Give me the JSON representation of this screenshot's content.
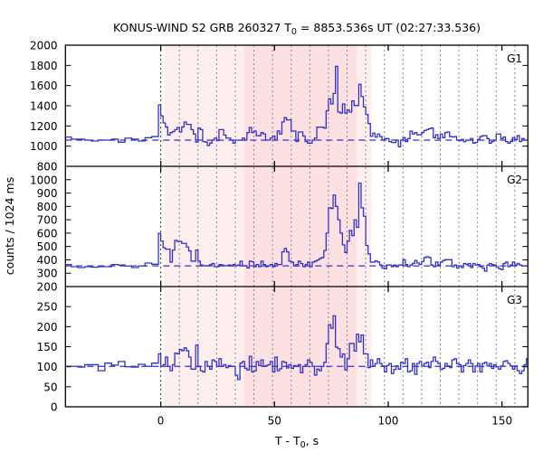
{
  "display": {
    "title": {
      "prefix": "KONUS-WIND S2 GRB 260327 T",
      "sub": "0",
      "suffix": " = 8853.536s UT (02:27:33.536)"
    },
    "xlabel": {
      "prefix": "T - T",
      "sub": "0",
      "suffix": ", s"
    },
    "ylabel": "counts / 1024 ms"
  },
  "chart_data": {
    "type": "line",
    "style": "step",
    "title": "KONUS-WIND S2 GRB 260327 T0 = 8853.536s UT (02:27:33.536)",
    "xlabel": "T - T0, s",
    "ylabel": "counts / 1024 ms",
    "xlim": [
      -41.9,
      161.4
    ],
    "xticks": [
      0,
      50,
      100,
      150
    ],
    "grid": false,
    "legend": null,
    "line_color": "#3232c8",
    "highlight_intervals": [
      {
        "start": 1.6,
        "end": 92.7,
        "color": "#feeeee"
      },
      {
        "start": 36.7,
        "end": 86.2,
        "color": "#fde0e2"
      }
    ],
    "vertical_dotted_lines": {
      "start": 0,
      "step": 8.192,
      "count": 20
    },
    "panels": [
      {
        "name": "G1",
        "label": "G1",
        "ylim": [
          800,
          2000
        ],
        "yticks": [
          800,
          1000,
          1200,
          1400,
          1600,
          1800,
          2000
        ],
        "background_level": 1060,
        "pre_trigger": {
          "t_start": -42.24,
          "bin_width": 2.944,
          "values": [
            1090,
            1069,
            1069,
            1060,
            1051,
            1060,
            1060,
            1069,
            1039,
            1080,
            1069,
            1051,
            1084,
            1095
          ]
        },
        "post_trigger": {
          "t_start": -1.024,
          "bin_width": 1.024,
          "values": [
            1409,
            1300,
            1230,
            1190,
            1110,
            1134,
            1145,
            1164,
            1185,
            1140,
            1190,
            1239,
            1215,
            1215,
            1164,
            1120,
            1040,
            1179,
            1164,
            1045,
            1040,
            1006,
            1030,
            1060,
            1080,
            1055,
            1164,
            1164,
            1110,
            1080,
            1080,
            1060,
            1030,
            1060,
            1060,
            1060,
            1080,
            1060,
            1134,
            1185,
            1134,
            1150,
            1104,
            1104,
            1134,
            1120,
            1060,
            1060,
            1080,
            1100,
            1060,
            1150,
            1120,
            1240,
            1282,
            1260,
            1260,
            1149,
            1150,
            1046,
            1140,
            1140,
            1100,
            1045,
            1030,
            1030,
            1060,
            1080,
            1188,
            1188,
            1188,
            1179,
            1350,
            1469,
            1418,
            1522,
            1791,
            1337,
            1328,
            1418,
            1328,
            1358,
            1337,
            1448,
            1403,
            1403,
            1612,
            1492,
            1388,
            1313,
            1224,
            1098,
            1129,
            1089,
            1120,
            1095,
            1060,
            1075,
            1075,
            1045,
            1036,
            1036,
            1060,
            994,
            1060,
            1084,
            1045,
            1075,
            1149,
            1120,
            1134,
            1113,
            1113,
            1134,
            1155,
            1164,
            1173,
            1179,
            1084,
            1113,
            1075,
            1120,
            1084,
            1134,
            1140,
            1095,
            1090,
            1095,
            1060,
            1054,
            1066,
            1045,
            1060,
            1060,
            1075,
            1030,
            1036,
            1066,
            1095,
            1104,
            1104,
            1075,
            1030,
            1045,
            1060,
            1120,
            1120,
            1075,
            1090,
            1045,
            1030,
            1045,
            1084,
            1066,
            1104,
            1045,
            1075,
            1060,
            1060
          ]
        }
      },
      {
        "name": "G2",
        "label": "G2",
        "ylim": [
          200,
          1100
        ],
        "yticks": [
          200,
          300,
          400,
          500,
          600,
          700,
          800,
          900,
          1000
        ],
        "background_level": 355,
        "pre_trigger": {
          "t_start": -42.24,
          "bin_width": 2.944,
          "values": [
            365,
            349,
            342,
            349,
            345,
            349,
            349,
            365,
            361,
            354,
            342,
            354,
            376,
            367
          ]
        },
        "post_trigger": {
          "t_start": -1.024,
          "bin_width": 1.024,
          "values": [
            598,
            540,
            490,
            480,
            480,
            383,
            473,
            546,
            537,
            537,
            523,
            523,
            496,
            467,
            390,
            390,
            473,
            390,
            361,
            356,
            356,
            356,
            365,
            372,
            349,
            349,
            365,
            361,
            356,
            356,
            361,
            356,
            365,
            356,
            361,
            390,
            356,
            356,
            340,
            390,
            385,
            349,
            365,
            349,
            390,
            365,
            349,
            356,
            365,
            349,
            372,
            365,
            365,
            460,
            485,
            460,
            390,
            383,
            356,
            365,
            390,
            372,
            349,
            365,
            383,
            349,
            383,
            390,
            399,
            410,
            417,
            470,
            600,
            790,
            785,
            885,
            800,
            700,
            600,
            512,
            455,
            540,
            620,
            582,
            700,
            643,
            975,
            790,
            727,
            507,
            444,
            383,
            383,
            393,
            383,
            361,
            338,
            334,
            361,
            361,
            349,
            361,
            349,
            361,
            361,
            401,
            365,
            349,
            361,
            372,
            395,
            376,
            365,
            388,
            417,
            424,
            417,
            361,
            349,
            383,
            361,
            383,
            395,
            401,
            401,
            401,
            349,
            361,
            338,
            354,
            342,
            372,
            365,
            372,
            342,
            372,
            361,
            365,
            349,
            338,
            315,
            361,
            372,
            365,
            361,
            349,
            334,
            327,
            372,
            383,
            349,
            361,
            383,
            361,
            372,
            361,
            354,
            354,
            354
          ]
        }
      },
      {
        "name": "G3",
        "label": "G3",
        "ylim": [
          0,
          300
        ],
        "yticks": [
          0,
          50,
          100,
          150,
          200,
          250
        ],
        "background_level": 101,
        "pre_trigger": {
          "t_start": -42.24,
          "bin_width": 2.944,
          "values": [
            101,
            101,
            99,
            105,
            105,
            90,
            109,
            104,
            113,
            100,
            99,
            106,
            101,
            109
          ]
        },
        "post_trigger": {
          "t_start": -1.024,
          "bin_width": 1.024,
          "values": [
            132,
            101,
            105,
            124,
            101,
            90,
            105,
            134,
            132,
            143,
            140,
            147,
            140,
            124,
            94,
            94,
            154,
            101,
            90,
            87,
            113,
            101,
            94,
            117,
            113,
            101,
            120,
            101,
            105,
            98,
            103,
            101,
            101,
            79,
            68,
            109,
            113,
            96,
            92,
            126,
            87,
            90,
            113,
            103,
            117,
            101,
            103,
            105,
            113,
            87,
            124,
            90,
            95,
            113,
            111,
            97,
            105,
            96,
            103,
            101,
            105,
            85,
            101,
            105,
            117,
            111,
            101,
            79,
            94,
            90,
            101,
            111,
            158,
            205,
            196,
            227,
            149,
            145,
            124,
            132,
            92,
            120,
            158,
            158,
            139,
            181,
            162,
            179,
            132,
            132,
            98,
            117,
            101,
            108,
            120,
            108,
            102,
            87,
            103,
            108,
            83,
            93,
            102,
            94,
            111,
            108,
            120,
            87,
            90,
            108,
            81,
            108,
            113,
            102,
            108,
            111,
            98,
            113,
            124,
            113,
            108,
            93,
            96,
            108,
            102,
            98,
            117,
            120,
            108,
            105,
            87,
            103,
            108,
            117,
            108,
            87,
            102,
            108,
            87,
            108,
            111,
            102,
            108,
            96,
            105,
            100,
            94,
            102,
            113,
            115,
            108,
            102,
            94,
            102,
            90,
            83,
            90,
            105,
            120
          ]
        }
      }
    ]
  }
}
